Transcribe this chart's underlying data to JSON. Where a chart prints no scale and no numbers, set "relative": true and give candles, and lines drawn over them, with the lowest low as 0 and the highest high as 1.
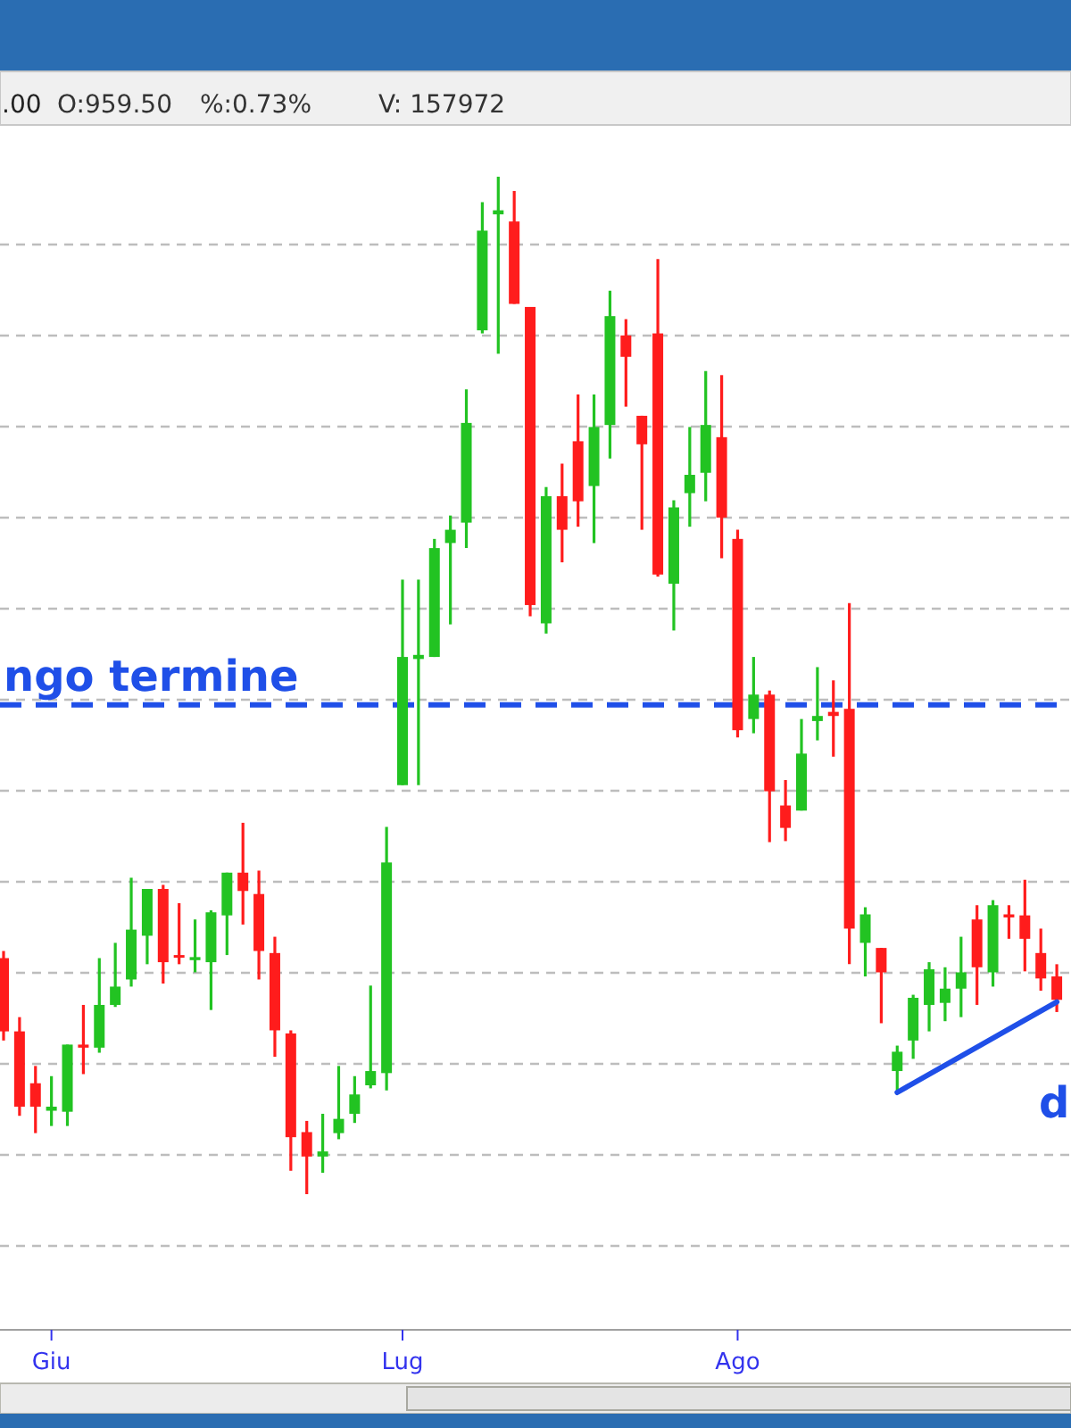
{
  "chart_data": {
    "type": "candlestick",
    "relative": true,
    "grid": "y",
    "categories": [
      null,
      null,
      null,
      "Giu",
      null,
      null,
      null,
      null,
      null,
      null,
      null,
      null,
      null,
      null,
      null,
      null,
      null,
      null,
      null,
      null,
      null,
      null,
      null,
      null,
      null,
      "Lug",
      null,
      null,
      null,
      null,
      null,
      null,
      null,
      null,
      null,
      null,
      null,
      null,
      null,
      null,
      null,
      null,
      null,
      null,
      null,
      null,
      "Ago",
      null,
      null,
      null,
      null,
      null,
      null,
      null,
      null,
      null,
      null,
      null,
      null,
      null,
      null,
      null,
      null,
      null,
      null,
      null,
      null
    ],
    "ohlc": [
      [
        0.232,
        0.239,
        0.151,
        0.16
      ],
      [
        0.16,
        0.174,
        0.077,
        0.086
      ],
      [
        0.109,
        0.126,
        0.06,
        0.086
      ],
      [
        0.082,
        0.116,
        0.067,
        0.086
      ],
      [
        0.081,
        0.147,
        0.067,
        0.147
      ],
      [
        0.147,
        0.186,
        0.118,
        0.144
      ],
      [
        0.144,
        0.232,
        0.139,
        0.186
      ],
      [
        0.186,
        0.247,
        0.184,
        0.204
      ],
      [
        0.211,
        0.311,
        0.204,
        0.26
      ],
      [
        0.254,
        0.3,
        0.226,
        0.3
      ],
      [
        0.3,
        0.304,
        0.207,
        0.228
      ],
      [
        0.235,
        0.286,
        0.226,
        0.233
      ],
      [
        0.23,
        0.27,
        0.218,
        0.233
      ],
      [
        0.228,
        0.279,
        0.181,
        0.277
      ],
      [
        0.274,
        0.316,
        0.235,
        0.316
      ],
      [
        0.316,
        0.365,
        0.265,
        0.298
      ],
      [
        0.295,
        0.318,
        0.211,
        0.239
      ],
      [
        0.237,
        0.253,
        0.135,
        0.161
      ],
      [
        0.158,
        0.161,
        0.023,
        0.056
      ],
      [
        0.061,
        0.072,
        0,
        0.037
      ],
      [
        0.037,
        0.079,
        0.021,
        0.042
      ],
      [
        0.06,
        0.126,
        0.054,
        0.074
      ],
      [
        0.079,
        0.116,
        0.07,
        0.098
      ],
      [
        0.107,
        0.205,
        0.104,
        0.121
      ],
      [
        0.119,
        0.361,
        0.102,
        0.326
      ],
      [
        0.402,
        0.604,
        0.402,
        0.528
      ],
      [
        0.526,
        0.604,
        0.402,
        0.53
      ],
      [
        0.528,
        0.644,
        0.528,
        0.635
      ],
      [
        0.64,
        0.667,
        0.56,
        0.653
      ],
      [
        0.66,
        0.791,
        0.635,
        0.758
      ],
      [
        0.849,
        0.975,
        0.846,
        0.947
      ],
      [
        0.963,
        1,
        0.826,
        0.967
      ],
      [
        0.956,
        0.986,
        0.875,
        0.875
      ],
      [
        0.872,
        0.872,
        0.568,
        0.579
      ],
      [
        0.561,
        0.695,
        0.551,
        0.686
      ],
      [
        0.686,
        0.718,
        0.621,
        0.653
      ],
      [
        0.74,
        0.786,
        0.656,
        0.681
      ],
      [
        0.696,
        0.786,
        0.64,
        0.754
      ],
      [
        0.756,
        0.888,
        0.723,
        0.863
      ],
      [
        0.844,
        0.86,
        0.774,
        0.823
      ],
      [
        0.765,
        0.765,
        0.653,
        0.737
      ],
      [
        0.846,
        0.919,
        0.607,
        0.609
      ],
      [
        0.6,
        0.682,
        0.554,
        0.675
      ],
      [
        0.689,
        0.754,
        0.656,
        0.707
      ],
      [
        0.709,
        0.809,
        0.681,
        0.756
      ],
      [
        0.744,
        0.805,
        0.625,
        0.665
      ],
      [
        0.644,
        0.653,
        0.449,
        0.456
      ],
      [
        0.467,
        0.528,
        0.453,
        0.491
      ],
      [
        0.491,
        0.495,
        0.346,
        0.396
      ],
      [
        0.382,
        0.407,
        0.347,
        0.36
      ],
      [
        0.377,
        0.467,
        0.377,
        0.433
      ],
      [
        0.465,
        0.518,
        0.446,
        0.47
      ],
      [
        0.474,
        0.505,
        0.43,
        0.47
      ],
      [
        0.477,
        0.581,
        0.226,
        0.261
      ],
      [
        0.247,
        0.282,
        0.214,
        0.275
      ],
      [
        0.242,
        0.242,
        0.168,
        0.218
      ],
      [
        0.121,
        0.146,
        0.1,
        0.14
      ],
      [
        0.151,
        0.196,
        0.133,
        0.193
      ],
      [
        0.186,
        0.228,
        0.16,
        0.221
      ],
      [
        0.188,
        0.223,
        0.17,
        0.202
      ],
      [
        0.202,
        0.253,
        0.174,
        0.218
      ],
      [
        0.27,
        0.284,
        0.186,
        0.223
      ],
      [
        0.218,
        0.289,
        0.204,
        0.284
      ],
      [
        0.275,
        0.284,
        0.251,
        0.272
      ],
      [
        0.274,
        0.309,
        0.219,
        0.251
      ],
      [
        0.237,
        0.261,
        0.2,
        0.212
      ],
      [
        0.214,
        0.226,
        0.179,
        0.191
      ]
    ],
    "colors": [
      "#ff1c1c",
      "#ff1c1c",
      "#ff1c1c",
      "#22c322",
      "#22c322",
      "#ff1c1c",
      "#22c322",
      "#22c322",
      "#22c322",
      "#22c322",
      "#ff1c1c",
      "#ff1c1c",
      "#22c322",
      "#22c322",
      "#22c322",
      "#ff1c1c",
      "#ff1c1c",
      "#ff1c1c",
      "#ff1c1c",
      "#ff1c1c",
      "#22c322",
      "#22c322",
      "#22c322",
      "#22c322",
      "#22c322",
      "#22c322",
      "#22c322",
      "#22c322",
      "#22c322",
      "#22c322",
      "#22c322",
      "#22c322",
      "#ff1c1c",
      "#ff1c1c",
      "#22c322",
      "#ff1c1c",
      "#ff1c1c",
      "#22c322",
      "#22c322",
      "#ff1c1c",
      "#ff1c1c",
      "#ff1c1c",
      "#22c322",
      "#22c322",
      "#22c322",
      "#ff1c1c",
      "#ff1c1c",
      "#22c322",
      "#ff1c1c",
      "#ff1c1c",
      "#22c322",
      "#22c322",
      "#ff1c1c",
      "#ff1c1c",
      "#22c322",
      "#ff1c1c",
      "#22c322",
      "#22c322",
      "#22c322",
      "#22c322",
      "#22c322",
      "#ff1c1c",
      "#22c322",
      "#ff1c1c",
      "#ff1c1c",
      "#ff1c1c",
      "#ff1c1c"
    ],
    "series": [
      {
        "type": "line",
        "color": "#1f4fe8",
        "values": [
          null,
          null,
          null,
          null,
          null,
          null,
          null,
          null,
          null,
          null,
          null,
          null,
          null,
          null,
          null,
          null,
          null,
          null,
          null,
          null,
          null,
          null,
          null,
          null,
          null,
          null,
          null,
          null,
          null,
          null,
          null,
          null,
          null,
          null,
          null,
          null,
          null,
          null,
          null,
          null,
          null,
          null,
          null,
          null,
          null,
          null,
          null,
          null,
          null,
          null,
          null,
          null,
          null,
          null,
          null,
          null,
          0.1,
          null,
          null,
          null,
          null,
          null,
          null,
          null,
          null,
          null,
          0.189
        ]
      }
    ],
    "ref_lines": [
      {
        "axis": "y",
        "value": 0.481,
        "label": "ngo termine",
        "color": "#1f4fe8",
        "line_style": "dashed"
      }
    ],
    "annotations": [
      ".00",
      "O:959.50",
      "%:0.73%",
      "V: 157972",
      "d"
    ]
  }
}
